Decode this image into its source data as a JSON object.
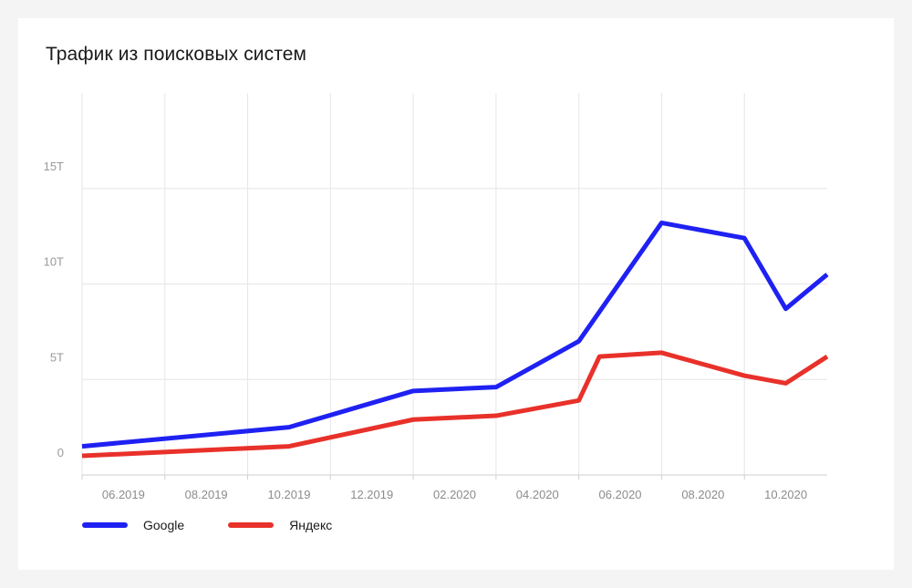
{
  "chart_data": {
    "type": "line",
    "title": "Трафик из поисковых систем",
    "y_ticks": [
      {
        "value": 0,
        "label": "0"
      },
      {
        "value": 5,
        "label": "5Т"
      },
      {
        "value": 10,
        "label": "10Т"
      },
      {
        "value": 15,
        "label": "15Т"
      }
    ],
    "ylim": [
      0,
      20
    ],
    "xlim": [
      0,
      18
    ],
    "x_ticks": [
      {
        "value": 1,
        "label": "06.2019"
      },
      {
        "value": 3,
        "label": "08.2019"
      },
      {
        "value": 5,
        "label": "10.2019"
      },
      {
        "value": 7,
        "label": "12.2019"
      },
      {
        "value": 9,
        "label": "02.2020"
      },
      {
        "value": 11,
        "label": "04.2020"
      },
      {
        "value": 13,
        "label": "06.2020"
      },
      {
        "value": 15,
        "label": "08.2020"
      },
      {
        "value": 17,
        "label": "10.2020"
      }
    ],
    "x_gridlines": [
      0,
      2,
      4,
      6,
      8,
      10,
      12,
      14,
      16
    ],
    "series": [
      {
        "name": "Google",
        "color": "#1f21f2",
        "points": [
          [
            0,
            1.5
          ],
          [
            5,
            2.5
          ],
          [
            8,
            4.4
          ],
          [
            10,
            4.6
          ],
          [
            12,
            7.0
          ],
          [
            14,
            13.2
          ],
          [
            16,
            12.4
          ],
          [
            17,
            8.7
          ],
          [
            18,
            10.5
          ]
        ]
      },
      {
        "name": "Яндекс",
        "color": "#e8312a",
        "points": [
          [
            0,
            1.0
          ],
          [
            5,
            1.5
          ],
          [
            8,
            2.9
          ],
          [
            10,
            3.1
          ],
          [
            12,
            3.9
          ],
          [
            12.5,
            6.2
          ],
          [
            14,
            6.4
          ],
          [
            16,
            5.2
          ],
          [
            17,
            4.8
          ],
          [
            18,
            6.2
          ]
        ]
      }
    ],
    "grid": true,
    "legend": "bottom-left"
  }
}
